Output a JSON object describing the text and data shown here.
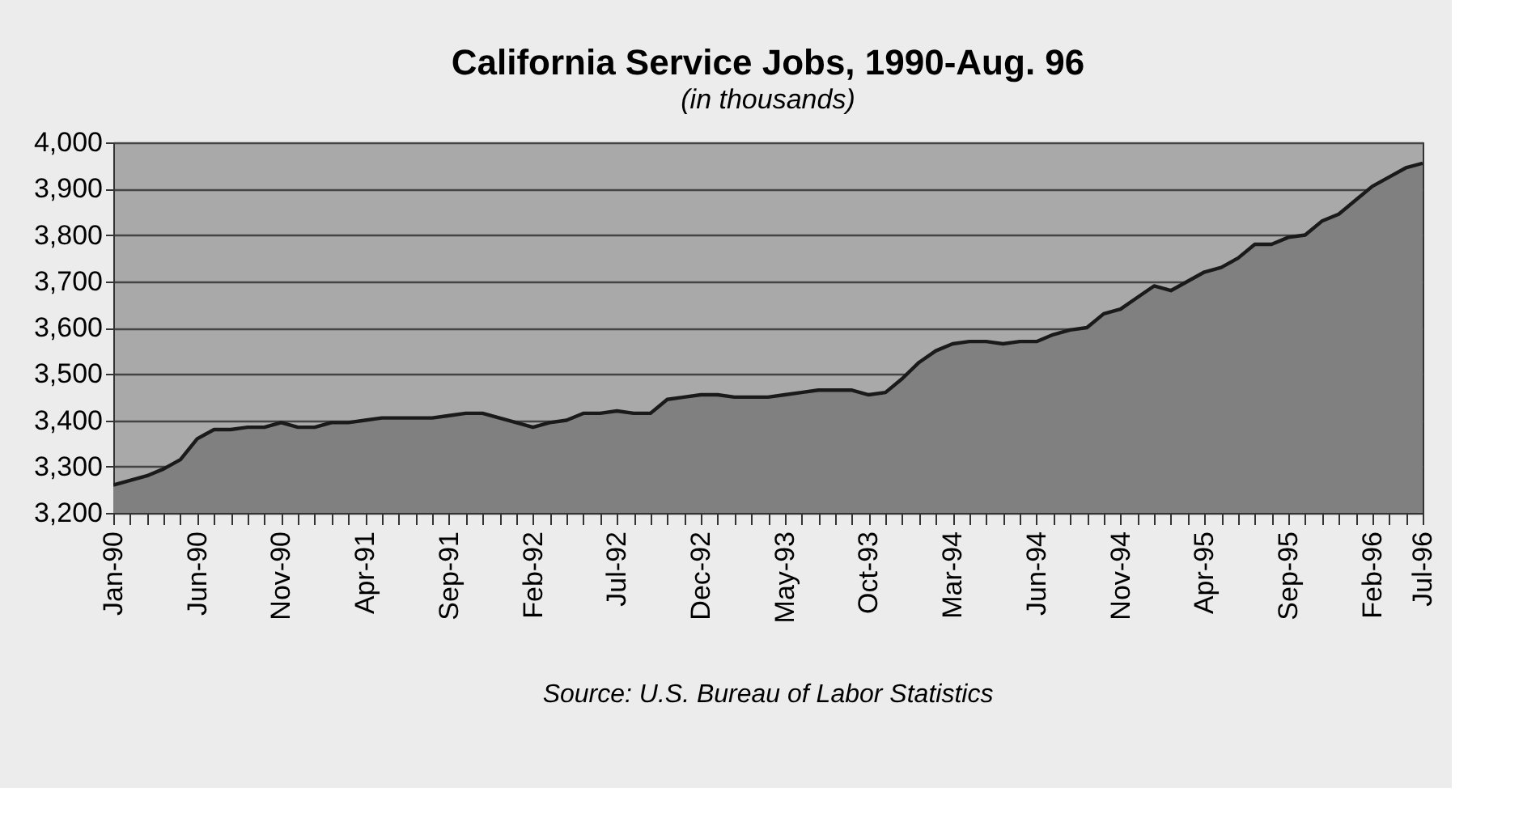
{
  "chart_data": {
    "type": "area",
    "title": "California Service Jobs, 1990-Aug. 96",
    "subtitle": "(in thousands)",
    "categories": [
      "Jan-90",
      null,
      null,
      null,
      null,
      "Jun-90",
      null,
      null,
      null,
      null,
      "Nov-90",
      null,
      null,
      null,
      null,
      "Apr-91",
      null,
      null,
      null,
      null,
      "Sep-91",
      null,
      null,
      null,
      null,
      "Feb-92",
      null,
      null,
      null,
      null,
      "Jul-92",
      null,
      null,
      null,
      null,
      "Dec-92",
      null,
      null,
      null,
      null,
      "May-93",
      null,
      null,
      null,
      null,
      "Oct-93",
      null,
      null,
      null,
      null,
      "Mar-94",
      null,
      null,
      null,
      null,
      "Jun-94",
      null,
      null,
      null,
      null,
      "Nov-94",
      null,
      null,
      null,
      null,
      "Apr-95",
      null,
      null,
      null,
      null,
      "Sep-95",
      null,
      null,
      null,
      null,
      "Feb-96",
      null,
      null,
      "Jul-96"
    ],
    "series": [
      {
        "color": "#808080",
        "values": [
          3260,
          3270,
          3280,
          3295,
          3315,
          3360,
          3380,
          3380,
          3385,
          3385,
          3395,
          3385,
          3385,
          3395,
          3395,
          3400,
          3405,
          3405,
          3405,
          3405,
          3410,
          3415,
          3415,
          3405,
          3395,
          3385,
          3395,
          3400,
          3415,
          3415,
          3420,
          3415,
          3415,
          3445,
          3450,
          3455,
          3455,
          3450,
          3450,
          3450,
          3455,
          3460,
          3465,
          3465,
          3465,
          3455,
          3460,
          3490,
          3525,
          3550,
          3565,
          3570,
          3570,
          3565,
          3570,
          3570,
          3585,
          3595,
          3600,
          3630,
          3640,
          3665,
          3690,
          3680,
          3700,
          3720,
          3730,
          3750,
          3780,
          3780,
          3795,
          3800,
          3830,
          3845,
          3875,
          3905,
          3925,
          3945,
          3955
        ]
      }
    ],
    "ylim": [
      3200,
      4000
    ],
    "yticks": [
      {
        "value": 3200,
        "label": "3,200"
      },
      {
        "value": 3300,
        "label": "3,300"
      },
      {
        "value": 3400,
        "label": "3,400"
      },
      {
        "value": 3500,
        "label": "3,500"
      },
      {
        "value": 3600,
        "label": "3,600"
      },
      {
        "value": 3700,
        "label": "3,700"
      },
      {
        "value": 3800,
        "label": "3,800"
      },
      {
        "value": 3900,
        "label": "3,900"
      },
      {
        "value": 4000,
        "label": "4,000"
      }
    ],
    "grid": "y",
    "annotations": [
      "Source: U.S. Bureau of Labor Statistics"
    ]
  }
}
